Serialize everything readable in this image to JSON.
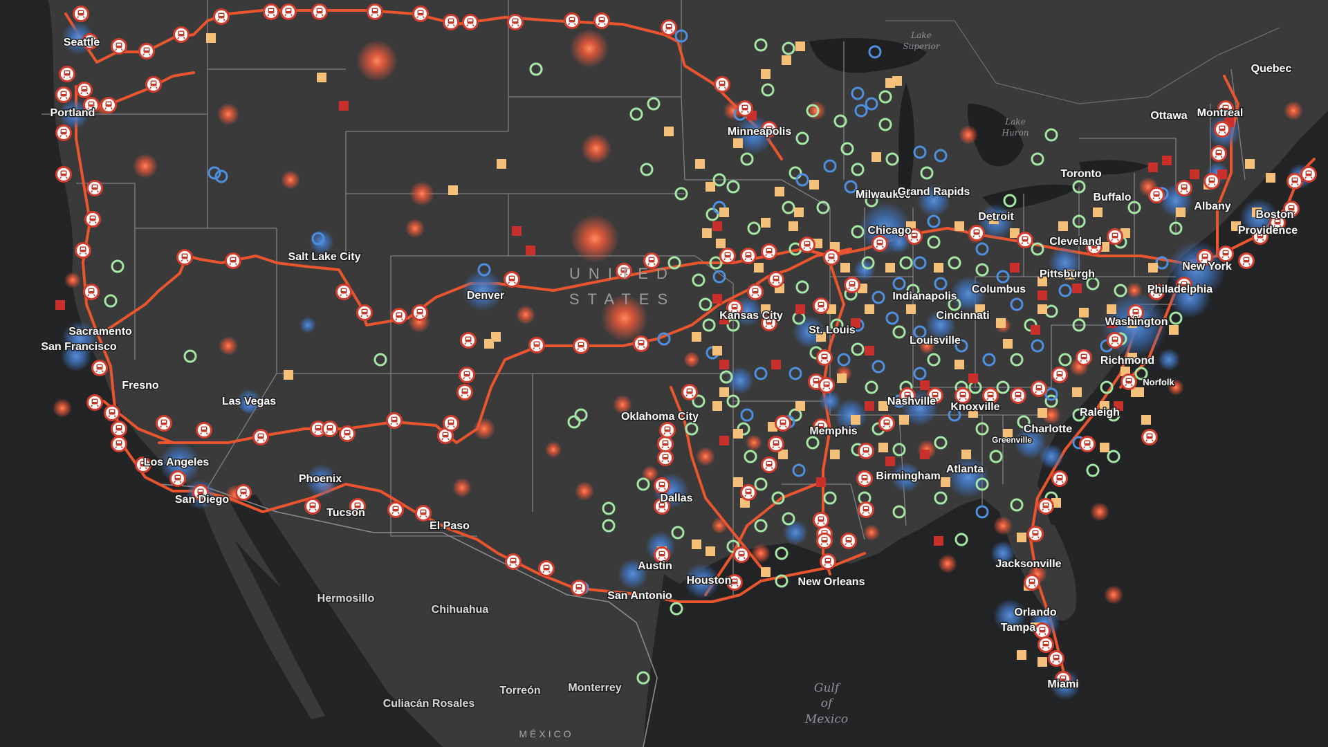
{
  "map": {
    "country_label": [
      "UNITED",
      "STATES"
    ],
    "mexico_label": "MÉXICO",
    "water_labels": {
      "gulf": [
        "Gulf",
        "of",
        "Mexico"
      ],
      "lake_superior": [
        "Lake",
        "Superior"
      ],
      "lake_huron": [
        "Lake",
        "Huron"
      ]
    },
    "cities": [
      "Seattle",
      "Portland",
      "Sacramento",
      "San Francisco",
      "Fresno",
      "Los Angeles",
      "San Diego",
      "Las Vegas",
      "Phoenix",
      "Tucson",
      "El Paso",
      "Salt Lake City",
      "Denver",
      "Minneapolis",
      "Milwaukee",
      "Chicago",
      "Grand Rapids",
      "Detroit",
      "Cleveland",
      "Pittsburgh",
      "Columbus",
      "Indianapolis",
      "Cincinnati",
      "Louisville",
      "St. Louis",
      "Kansas City",
      "Oklahoma City",
      "Dallas",
      "Austin",
      "San Antonio",
      "Houston",
      "New Orleans",
      "Memphis",
      "Nashville",
      "Knoxville",
      "Birmingham",
      "Atlanta",
      "Charlotte",
      "Greenville",
      "Raleigh",
      "Richmond",
      "Norfolk",
      "Washington",
      "Philadelphia",
      "New York",
      "Providence",
      "Boston",
      "Albany",
      "Buffalo",
      "Toronto",
      "Ottawa",
      "Montreal",
      "Quebec",
      "Jacksonville",
      "Orlando",
      "Tampa",
      "Miami",
      "Hermosillo",
      "Chihuahua",
      "Monterrey",
      "Torreón",
      "Culiacán Rosales"
    ],
    "colors": {
      "route": "#e8552e",
      "station_ring": "#c0392b",
      "cluster_blue": "#4a7ec0",
      "ring_green": "#9fe0a0",
      "ring_blue": "#3d7fd0",
      "square_tan": "#f5c07a",
      "square_red": "#c62828",
      "glow_orange": "#ff6a45",
      "land": "#3a3a3b",
      "water": "#1f2021"
    },
    "icons": {
      "station": "train-station-icon",
      "ring": "ring-marker",
      "square": "square-marker",
      "glow": "glow-marker"
    }
  }
}
